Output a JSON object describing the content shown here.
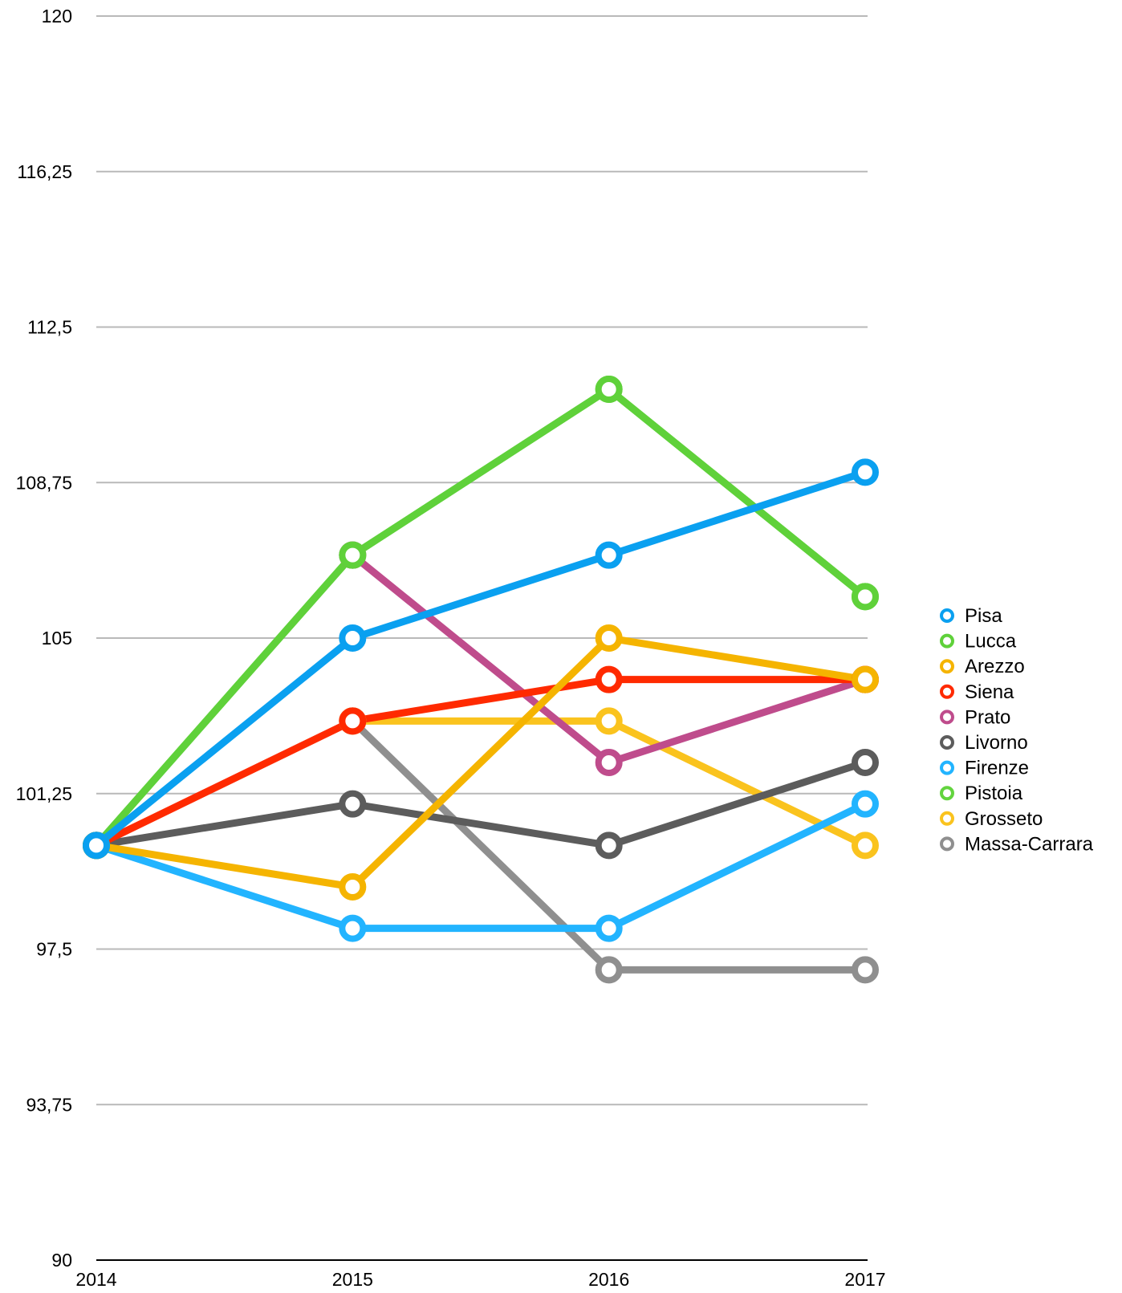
{
  "chart_data": {
    "type": "line",
    "title": "",
    "xlabel": "",
    "ylabel": "",
    "x": [
      "2014",
      "2015",
      "2016",
      "2017"
    ],
    "ylim": [
      90,
      120
    ],
    "yticks": [
      "90",
      "93,75",
      "97,5",
      "101,25",
      "105",
      "108,75",
      "112,5",
      "116,25",
      "120"
    ],
    "grid": true,
    "legend_position": "right",
    "series": [
      {
        "name": "Pisa",
        "color": "#0aa0f0",
        "values": [
          100,
          105,
          107,
          109
        ]
      },
      {
        "name": "Lucca",
        "color": "#5fd13a",
        "values": [
          100,
          107,
          111,
          106
        ]
      },
      {
        "name": "Arezzo",
        "color": "#f5b400",
        "values": [
          100,
          99,
          105,
          104
        ]
      },
      {
        "name": "Siena",
        "color": "#ff2a00",
        "values": [
          100,
          103,
          104,
          104
        ]
      },
      {
        "name": "Prato",
        "color": "#bf4c8c",
        "values": [
          null,
          107,
          102,
          104
        ]
      },
      {
        "name": "Livorno",
        "color": "#5c5c5c",
        "values": [
          100,
          101,
          100,
          102
        ]
      },
      {
        "name": "Firenze",
        "color": "#22b4ff",
        "values": [
          100,
          98,
          98,
          101
        ]
      },
      {
        "name": "Pistoia",
        "color": "#63d43e",
        "values": [
          100,
          107,
          111,
          106
        ]
      },
      {
        "name": "Grosseto",
        "color": "#fac31e",
        "values": [
          null,
          103,
          103,
          100
        ]
      },
      {
        "name": "Massa-Carrara",
        "color": "#8f8f8f",
        "values": [
          null,
          103,
          97,
          97
        ]
      }
    ]
  }
}
